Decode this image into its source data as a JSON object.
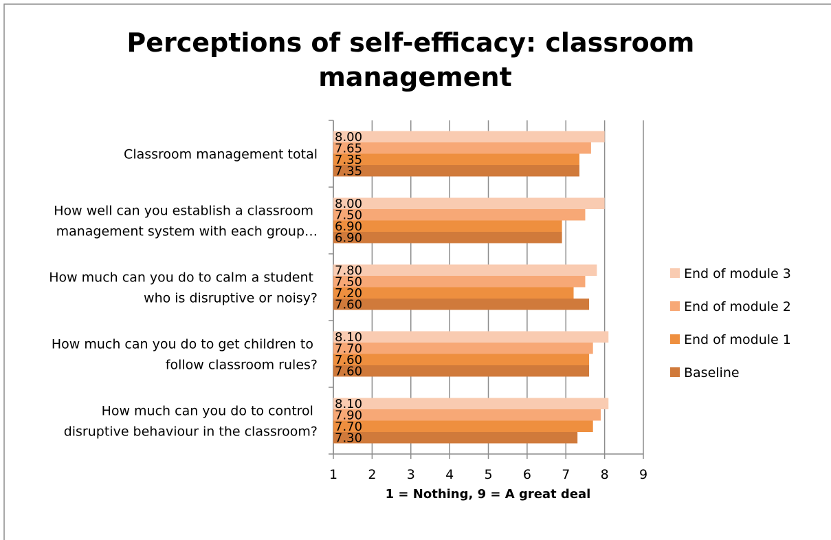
{
  "chart_data": {
    "type": "bar",
    "orientation": "horizontal",
    "title": "Perceptions of self-efficacy: classroom management",
    "xlabel": "1 = Nothing, 9 = A great deal",
    "categories": [
      "Classroom management total",
      "How well can you establish a classroom management system with each group…",
      "How much can you do to calm a student who is disruptive or noisy?",
      "How much can you do to get children to follow classroom rules?",
      "How much can you do to control disruptive behaviour in the classroom?"
    ],
    "series": [
      {
        "name": "End of module 3",
        "color": "#f9cbb1",
        "values": [
          8.0,
          8.0,
          7.8,
          8.1,
          8.1
        ],
        "value_labels": [
          "8.00",
          "8.00",
          "7.80",
          "8.10",
          "8.10"
        ]
      },
      {
        "name": "End of module 2",
        "color": "#f7a876",
        "values": [
          7.65,
          7.5,
          7.5,
          7.7,
          7.9
        ],
        "value_labels": [
          "7.65",
          "7.50",
          "7.50",
          "7.70",
          "7.90"
        ]
      },
      {
        "name": "End of module 1",
        "color": "#ee8f3f",
        "values": [
          7.35,
          6.9,
          7.2,
          7.6,
          7.7
        ],
        "value_labels": [
          "7.35",
          "6.90",
          "7.20",
          "7.60",
          "7.70"
        ]
      },
      {
        "name": "Baseline",
        "color": "#d07a3b",
        "values": [
          7.35,
          6.9,
          7.6,
          7.6,
          7.3
        ],
        "value_labels": [
          "7.35",
          "6.90",
          "7.60",
          "7.60",
          "7.30"
        ]
      }
    ],
    "xlim": [
      1,
      9
    ],
    "xticks": [
      1,
      2,
      3,
      4,
      5,
      6,
      7,
      8,
      9
    ],
    "grid": true,
    "legend": "right"
  }
}
